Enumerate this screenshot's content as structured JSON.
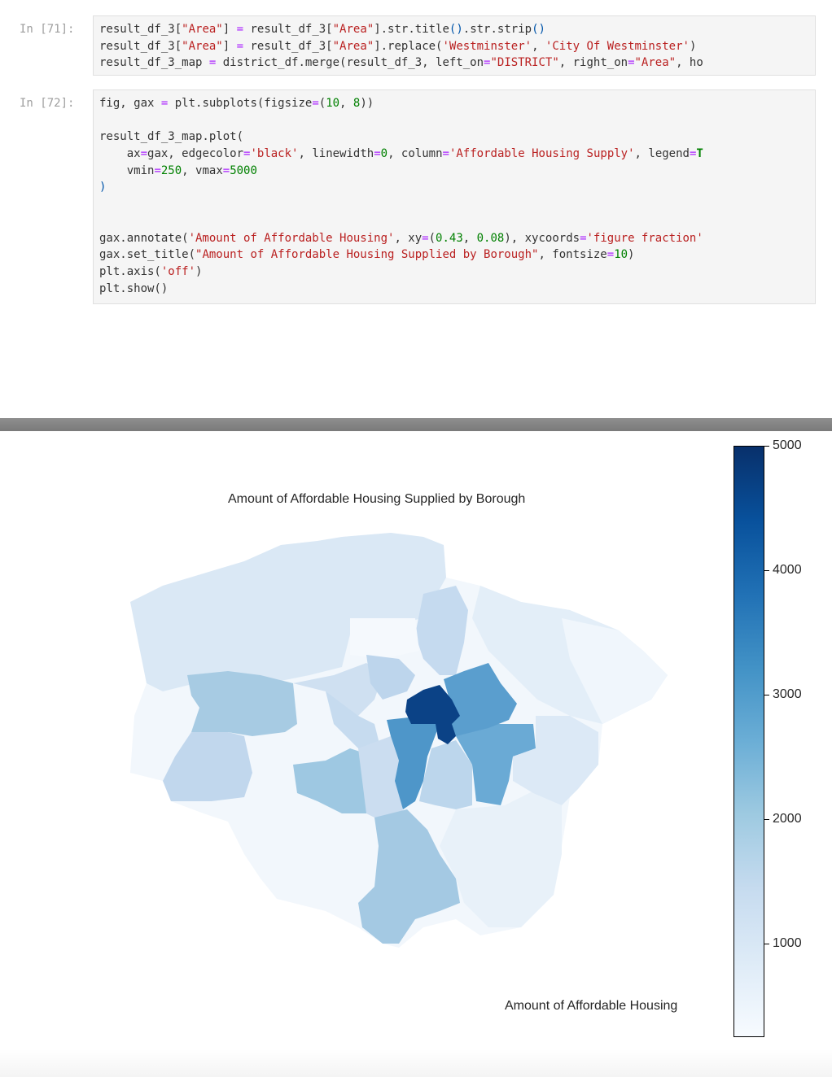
{
  "cells": [
    {
      "prompt": "In [71]:",
      "lines": [
        [
          [
            "",
            "result_df_3["
          ],
          [
            "str",
            "\"Area\""
          ],
          [
            "",
            "] "
          ],
          [
            "op",
            "="
          ],
          [
            "",
            " result_df_3["
          ],
          [
            "str",
            "\"Area\""
          ],
          [
            "",
            "].str.title"
          ],
          [
            "paren",
            "()"
          ],
          [
            "",
            ".str.strip"
          ],
          [
            "paren",
            "()"
          ]
        ],
        [
          [
            "",
            "result_df_3["
          ],
          [
            "str",
            "\"Area\""
          ],
          [
            "",
            "] "
          ],
          [
            "op",
            "="
          ],
          [
            "",
            " result_df_3["
          ],
          [
            "str",
            "\"Area\""
          ],
          [
            "",
            "].replace("
          ],
          [
            "str",
            "'Westminster'"
          ],
          [
            "",
            ", "
          ],
          [
            "str",
            "'City Of Westminster'"
          ],
          [
            "",
            ")"
          ]
        ],
        [
          [
            "",
            "result_df_3_map "
          ],
          [
            "op",
            "="
          ],
          [
            "",
            " district_df.merge(result_df_3, left_on"
          ],
          [
            "op",
            "="
          ],
          [
            "str",
            "\"DISTRICT\""
          ],
          [
            "",
            ", right_on"
          ],
          [
            "op",
            "="
          ],
          [
            "str",
            "\"Area\""
          ],
          [
            "",
            ", ho"
          ]
        ]
      ]
    },
    {
      "prompt": "In [72]:",
      "lines": [
        [
          [
            "",
            "fig, gax "
          ],
          [
            "op",
            "="
          ],
          [
            "",
            " plt.subplots(figsize"
          ],
          [
            "op",
            "="
          ],
          [
            "",
            "("
          ],
          [
            "num",
            "10"
          ],
          [
            "",
            ", "
          ],
          [
            "num",
            "8"
          ],
          [
            "",
            "))"
          ]
        ],
        [
          [
            "",
            ""
          ]
        ],
        [
          [
            "",
            "result_df_3_map.plot("
          ]
        ],
        [
          [
            "",
            "    ax"
          ],
          [
            "op",
            "="
          ],
          [
            "",
            "gax, edgecolor"
          ],
          [
            "op",
            "="
          ],
          [
            "str",
            "'black'"
          ],
          [
            "",
            ", linewidth"
          ],
          [
            "op",
            "="
          ],
          [
            "num",
            "0"
          ],
          [
            "",
            ", column"
          ],
          [
            "op",
            "="
          ],
          [
            "str",
            "'Affordable Housing Supply'"
          ],
          [
            "",
            ", legend"
          ],
          [
            "op",
            "="
          ],
          [
            "kw",
            "T"
          ]
        ],
        [
          [
            "",
            "    vmin"
          ],
          [
            "op",
            "="
          ],
          [
            "num",
            "250"
          ],
          [
            "",
            ", vmax"
          ],
          [
            "op",
            "="
          ],
          [
            "num",
            "5000"
          ]
        ],
        [
          [
            "paren",
            ")"
          ]
        ],
        [
          [
            "",
            ""
          ]
        ],
        [
          [
            "",
            ""
          ]
        ],
        [
          [
            "",
            "gax.annotate("
          ],
          [
            "str",
            "'Amount of Affordable Housing'"
          ],
          [
            "",
            ", xy"
          ],
          [
            "op",
            "="
          ],
          [
            "",
            "("
          ],
          [
            "num",
            "0.43"
          ],
          [
            "",
            ", "
          ],
          [
            "num",
            "0.08"
          ],
          [
            "",
            "), xycoords"
          ],
          [
            "op",
            "="
          ],
          [
            "str",
            "'figure fraction'"
          ]
        ],
        [
          [
            "",
            "gax.set_title("
          ],
          [
            "str",
            "\"Amount of Affordable Housing Supplied by Borough\""
          ],
          [
            "",
            ", fontsize"
          ],
          [
            "op",
            "="
          ],
          [
            "num",
            "10"
          ],
          [
            "",
            ")"
          ]
        ],
        [
          [
            "",
            "plt.axis("
          ],
          [
            "str",
            "'off'"
          ],
          [
            "",
            ")"
          ]
        ],
        [
          [
            "",
            "plt.show()"
          ]
        ]
      ]
    }
  ],
  "figure": {
    "title": "Amount of Affordable Housing Supplied by Borough",
    "annotation": "Amount of Affordable Housing",
    "colormap": [
      "#f7fbff",
      "#deebf7",
      "#c6dbef",
      "#9ecae1",
      "#6baed6",
      "#4292c6",
      "#2171b5",
      "#08519c",
      "#08306b"
    ],
    "vmin": 250,
    "vmax": 5000,
    "colorbar_ticks": [
      1000,
      2000,
      3000,
      4000,
      5000
    ]
  }
}
